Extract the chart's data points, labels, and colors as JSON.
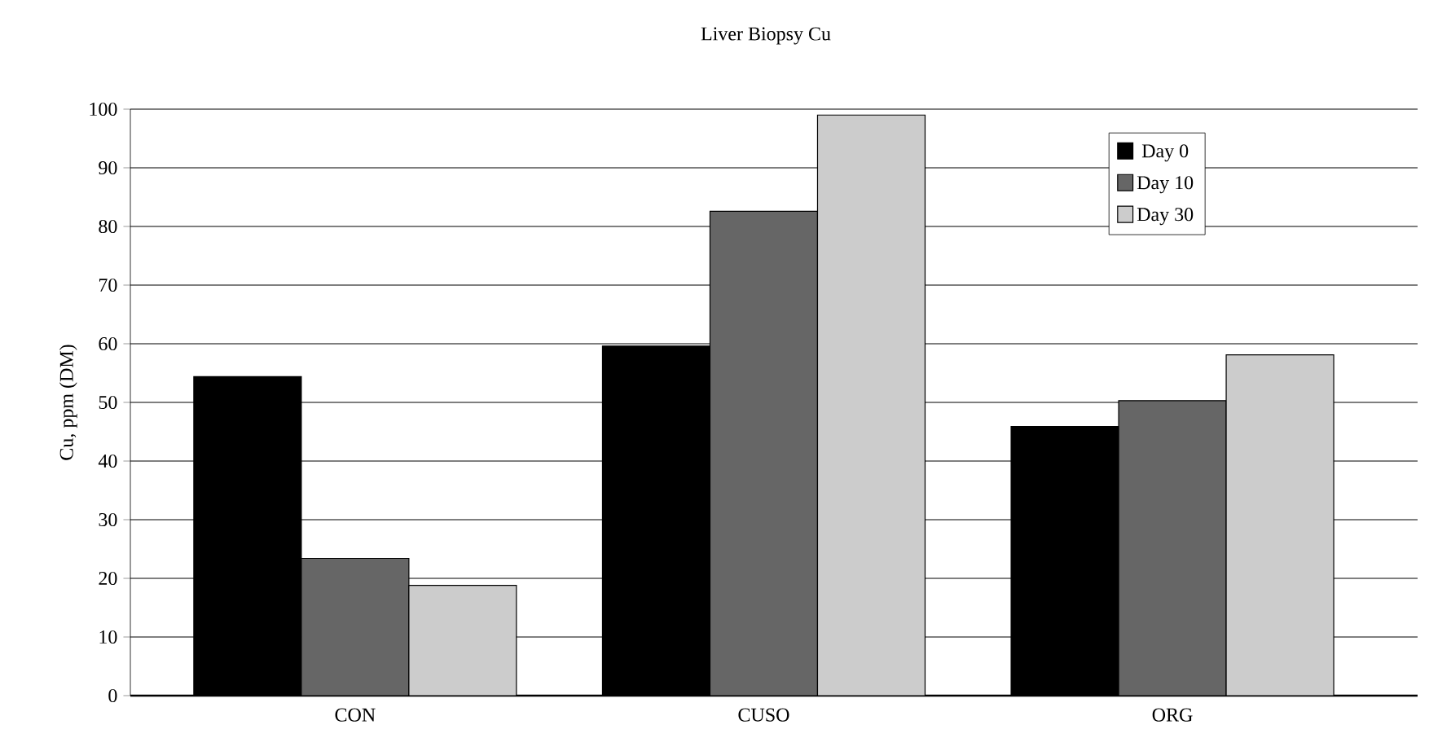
{
  "chart_data": {
    "type": "bar",
    "title": "Liver Biopsy Cu",
    "ylabel": "Cu, ppm (DM)",
    "categories": [
      "CON",
      "CUSO",
      "ORG"
    ],
    "series": [
      {
        "name": "Day 0",
        "color": "#000000",
        "values": [
          54.4,
          59.6,
          45.9
        ]
      },
      {
        "name": "Day 10",
        "color": "#666666",
        "values": [
          23.4,
          82.6,
          50.3
        ]
      },
      {
        "name": "Day 30",
        "color": "#cccccc",
        "values": [
          18.8,
          99.0,
          58.1
        ]
      }
    ],
    "ylim": [
      0,
      100
    ],
    "yticks": [
      0,
      10,
      20,
      30,
      40,
      50,
      60,
      70,
      80,
      90,
      100
    ],
    "grid": "y",
    "legend": "top right"
  }
}
